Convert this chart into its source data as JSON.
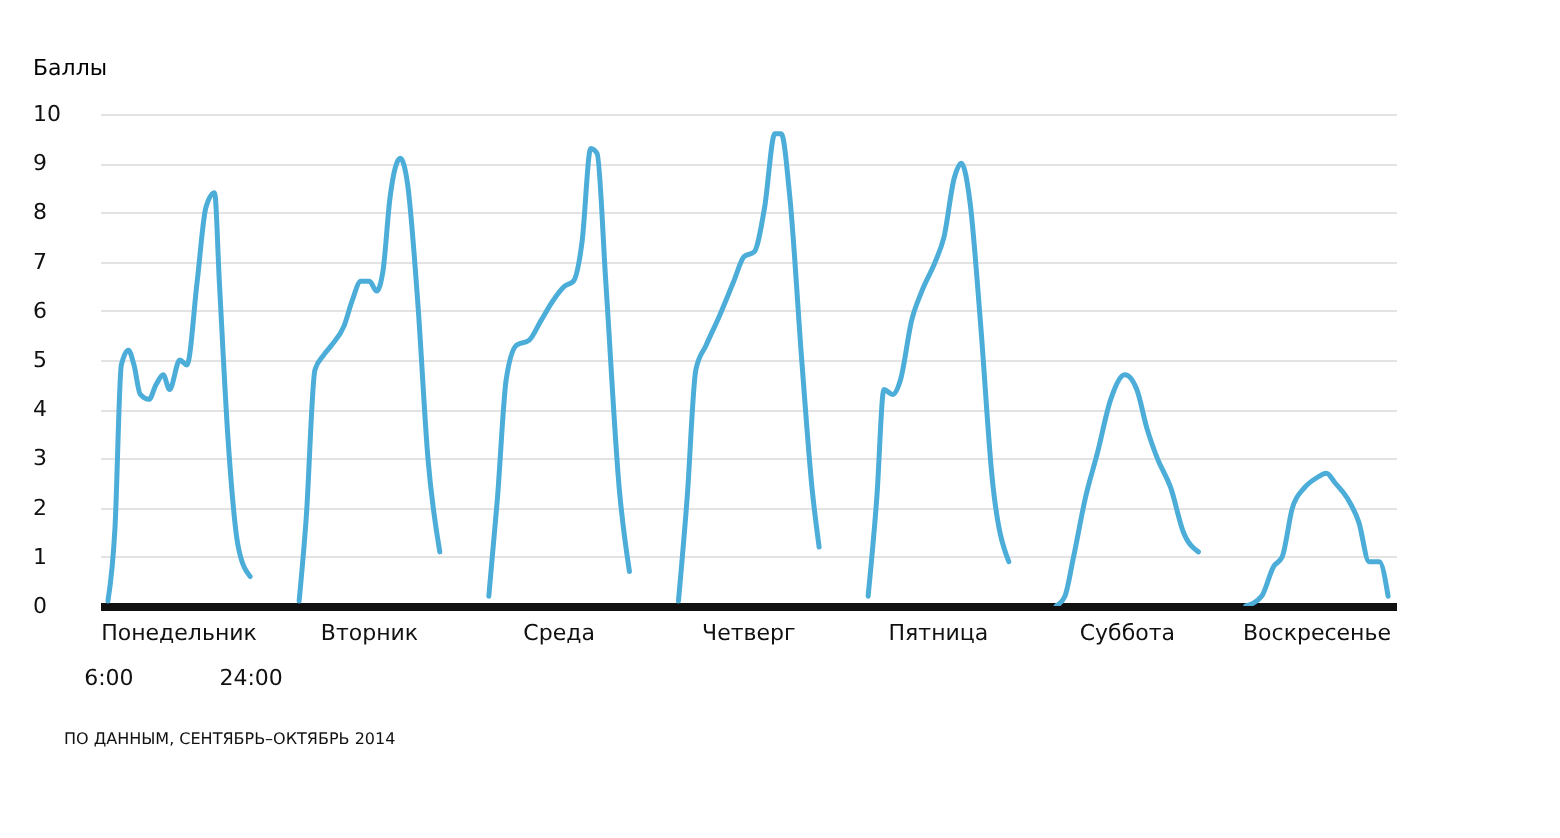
{
  "chart_data": {
    "type": "line",
    "ylabel": "Баллы",
    "xlim": [
      5,
      169
    ],
    "xticks": [
      {
        "value": 6,
        "label": "6:00"
      },
      {
        "value": 24,
        "label": "24:00"
      }
    ],
    "ylim": [
      0,
      10
    ],
    "yticks": [
      0,
      1,
      2,
      3,
      4,
      5,
      6,
      7,
      8,
      9,
      10
    ],
    "grid": "y",
    "annotations": [
      "ПО ДАННЫМ, СЕНТЯБРЬ–ОКТЯБРЬ 2014"
    ],
    "series": [
      {
        "name": "Понедельник",
        "color": "#4badd8",
        "x": [
          6,
          6.9,
          7.7,
          8.6,
          9.3,
          10.1,
          11.2,
          12.1,
          13,
          13.8,
          15.1,
          16,
          17.3,
          18.4,
          19.5,
          20.1,
          21.2,
          22.5,
          24
        ],
        "values": [
          0.1,
          1.6,
          4.9,
          5.2,
          4.9,
          4.3,
          4.2,
          4.5,
          4.7,
          4.4,
          5.0,
          4.9,
          6.6,
          8.1,
          8.4,
          6.6,
          3.4,
          1.2,
          0.6
        ]
      },
      {
        "name": "Вторник",
        "color": "#4badd8",
        "x": [
          30.2,
          31.1,
          32.2,
          33.3,
          34.3,
          35.9,
          36.9,
          38,
          39.1,
          40,
          40.8,
          41.7,
          43,
          43.9,
          45.2,
          46.5,
          48
        ],
        "values": [
          0.1,
          1.8,
          4.8,
          5.1,
          5.3,
          5.7,
          6.2,
          6.6,
          6.6,
          6.4,
          6.8,
          8.3,
          9.1,
          8.6,
          6.2,
          3.0,
          1.1
        ]
      },
      {
        "name": "Среда",
        "color": "#4badd8",
        "x": [
          54.2,
          55.3,
          56.4,
          57.7,
          59.3,
          60.8,
          62.3,
          63.8,
          64.9,
          66,
          67.1,
          67.9,
          69,
          70.7,
          72
        ],
        "values": [
          0.2,
          2.2,
          4.6,
          5.3,
          5.4,
          5.8,
          6.2,
          6.5,
          6.6,
          7.4,
          9.3,
          9.2,
          6.6,
          2.4,
          0.7
        ]
      },
      {
        "name": "Четверг",
        "color": "#4badd8",
        "x": [
          78.2,
          79.3,
          80.4,
          81.7,
          83.4,
          85.2,
          86.5,
          87.8,
          89.1,
          90.4,
          91.2,
          92.3,
          93.8,
          95.1,
          96
        ],
        "values": [
          0.1,
          2.2,
          4.8,
          5.3,
          5.9,
          6.6,
          7.1,
          7.2,
          8.1,
          9.6,
          9.6,
          8.3,
          5.0,
          2.4,
          1.2
        ]
      },
      {
        "name": "Пятница",
        "color": "#4badd8",
        "x": [
          102.2,
          103.3,
          104.2,
          105.3,
          106.3,
          107.7,
          109,
          110.7,
          111.8,
          113.1,
          114,
          115.1,
          116.4,
          117.9,
          120
        ],
        "values": [
          0.2,
          2.2,
          4.4,
          4.3,
          4.6,
          5.8,
          6.4,
          7.0,
          7.5,
          8.7,
          9.0,
          8.2,
          5.8,
          2.6,
          0.9
        ]
      },
      {
        "name": "Суббота",
        "color": "#4badd8",
        "x": [
          126,
          127.1,
          128.2,
          129.7,
          131.2,
          132.9,
          134.7,
          136.2,
          137.5,
          138.8,
          140.5,
          142.1,
          144
        ],
        "values": [
          0.0,
          0.2,
          1.0,
          2.2,
          3.1,
          4.2,
          4.7,
          4.4,
          3.6,
          3.0,
          2.4,
          1.5,
          1.1
        ]
      },
      {
        "name": "Воскресенье",
        "color": "#4badd8",
        "x": [
          150,
          152,
          153.5,
          154.6,
          155.9,
          157.4,
          158.9,
          160.2,
          161.3,
          162.8,
          164.3,
          165.6,
          166.9,
          168
        ],
        "values": [
          0.0,
          0.2,
          0.8,
          1.0,
          2.0,
          2.4,
          2.6,
          2.7,
          2.5,
          2.2,
          1.7,
          0.9,
          0.9,
          0.2
        ]
      }
    ]
  }
}
